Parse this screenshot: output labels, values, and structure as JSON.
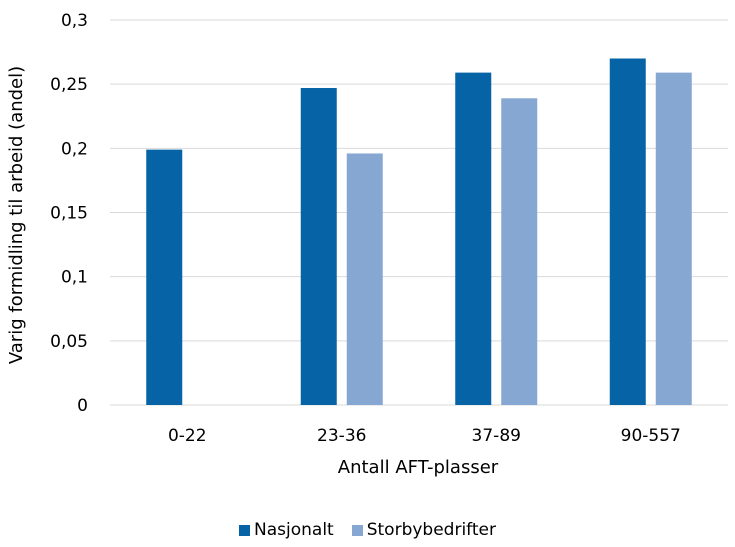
{
  "chart_data": {
    "type": "bar",
    "categories": [
      "0-22",
      "23-36",
      "37-89",
      "90-557"
    ],
    "series": [
      {
        "name": "Nasjonalt",
        "values": [
          0.199,
          0.247,
          0.259,
          0.27
        ],
        "color": "#0563a6"
      },
      {
        "name": "Storbybedrifter",
        "values": [
          null,
          0.196,
          0.239,
          0.259
        ],
        "color": "#86a7d2"
      }
    ],
    "ylim": [
      0,
      0.3
    ],
    "yticks": [
      0,
      0.05,
      0.1,
      0.15,
      0.2,
      0.25,
      0.3
    ],
    "ytick_labels": [
      "0",
      "0,05",
      "0,1",
      "0,15",
      "0,2",
      "0,25",
      "0,3"
    ],
    "xlabel": "Antall AFT-plasser",
    "ylabel": "Varig formidling til arbeid (andel)",
    "grid": true,
    "grid_color": "#d9d9d9",
    "legend_position": "bottom"
  }
}
